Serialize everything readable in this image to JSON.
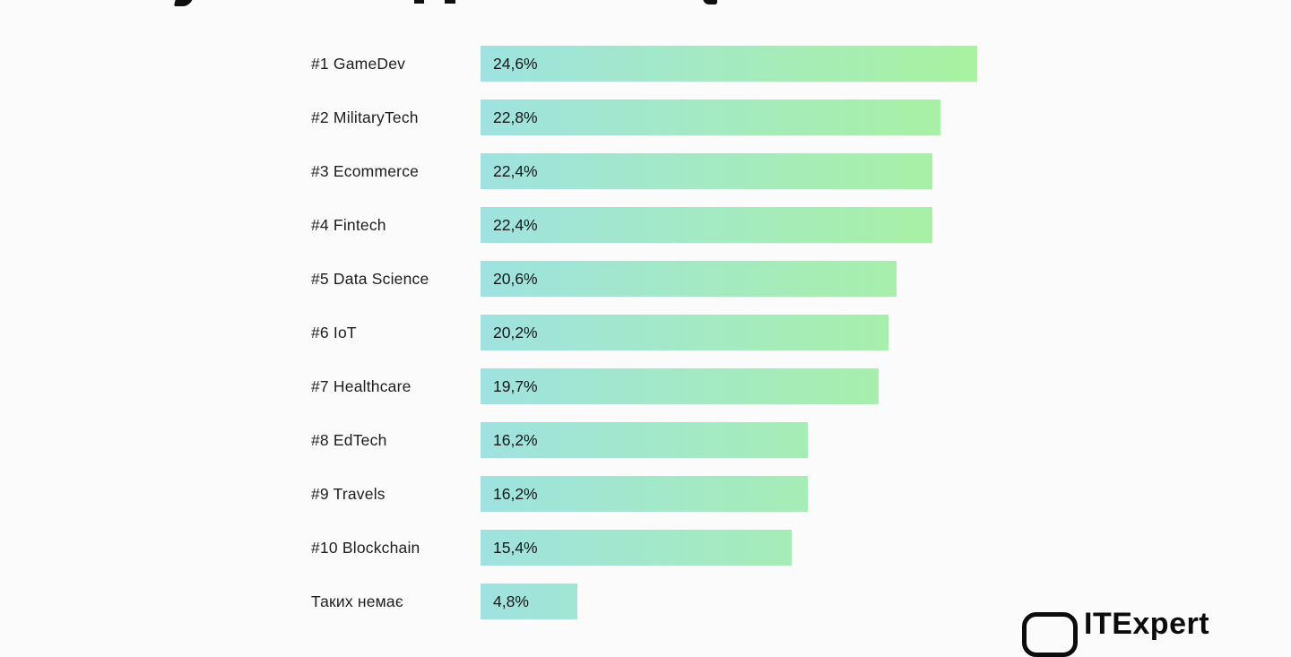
{
  "page": {
    "background": "#fbfbfb"
  },
  "chart_data": {
    "type": "bar",
    "orientation": "horizontal",
    "title": "",
    "xlabel": "",
    "ylabel": "",
    "grid": false,
    "legend": false,
    "xlim": [
      0,
      24.6
    ],
    "categories": [
      "#1 GameDev",
      "#2 MilitaryTech",
      "#3 Ecommerce",
      "#4 Fintech",
      "#5 Data Science",
      "#6 IoT",
      "#7 Healthcare",
      "#8 EdTech",
      "#9 Travels",
      "#10 Blockchain",
      "Таких немає"
    ],
    "values": [
      24.6,
      22.8,
      22.4,
      22.4,
      20.6,
      20.2,
      19.7,
      16.2,
      16.2,
      15.4,
      4.8
    ],
    "value_labels": [
      "24,6%",
      "22,8%",
      "22,4%",
      "22,4%",
      "20,6%",
      "20,2%",
      "19,7%",
      "16,2%",
      "16,2%",
      "15,4%",
      "4,8%"
    ],
    "bar_gradient": {
      "from": "#9fe2e0",
      "to": "#a9f2a0"
    }
  },
  "logo": {
    "text": "ITExpert",
    "icon": "chat-square-icon"
  }
}
